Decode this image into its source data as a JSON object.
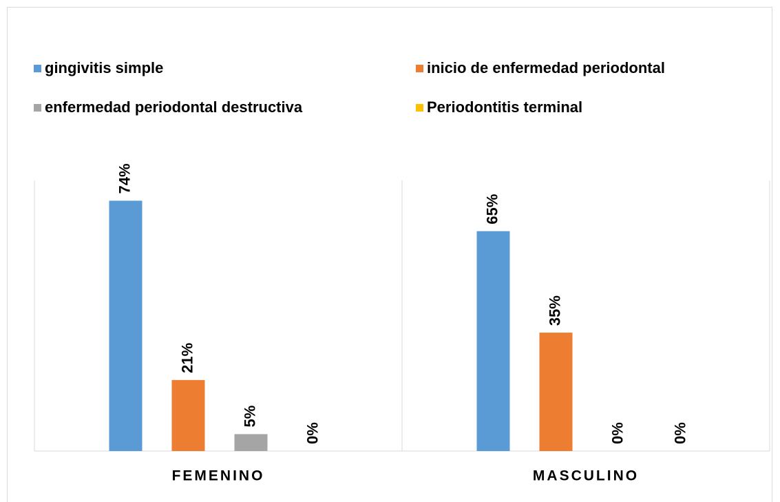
{
  "chart_data": {
    "type": "bar",
    "categories": [
      "FEMENINO",
      "MASCULINO"
    ],
    "series": [
      {
        "name": "gingivitis simple",
        "color": "#5b9bd5",
        "values": [
          74,
          65
        ],
        "value_labels": [
          "74%",
          "65%"
        ]
      },
      {
        "name": "inicio de enfermedad periodontal",
        "color": "#ed7d31",
        "values": [
          21,
          35
        ],
        "value_labels": [
          "21%",
          "35%"
        ]
      },
      {
        "name": "enfermedad periodontal destructiva",
        "color": "#a5a5a5",
        "values": [
          5,
          0
        ],
        "value_labels": [
          "5%",
          "0%"
        ]
      },
      {
        "name": "Periodontitis terminal",
        "color": "#ffc000",
        "values": [
          0,
          0
        ],
        "value_labels": [
          "0%",
          "0%"
        ]
      }
    ],
    "ylim": [
      0,
      80
    ]
  }
}
